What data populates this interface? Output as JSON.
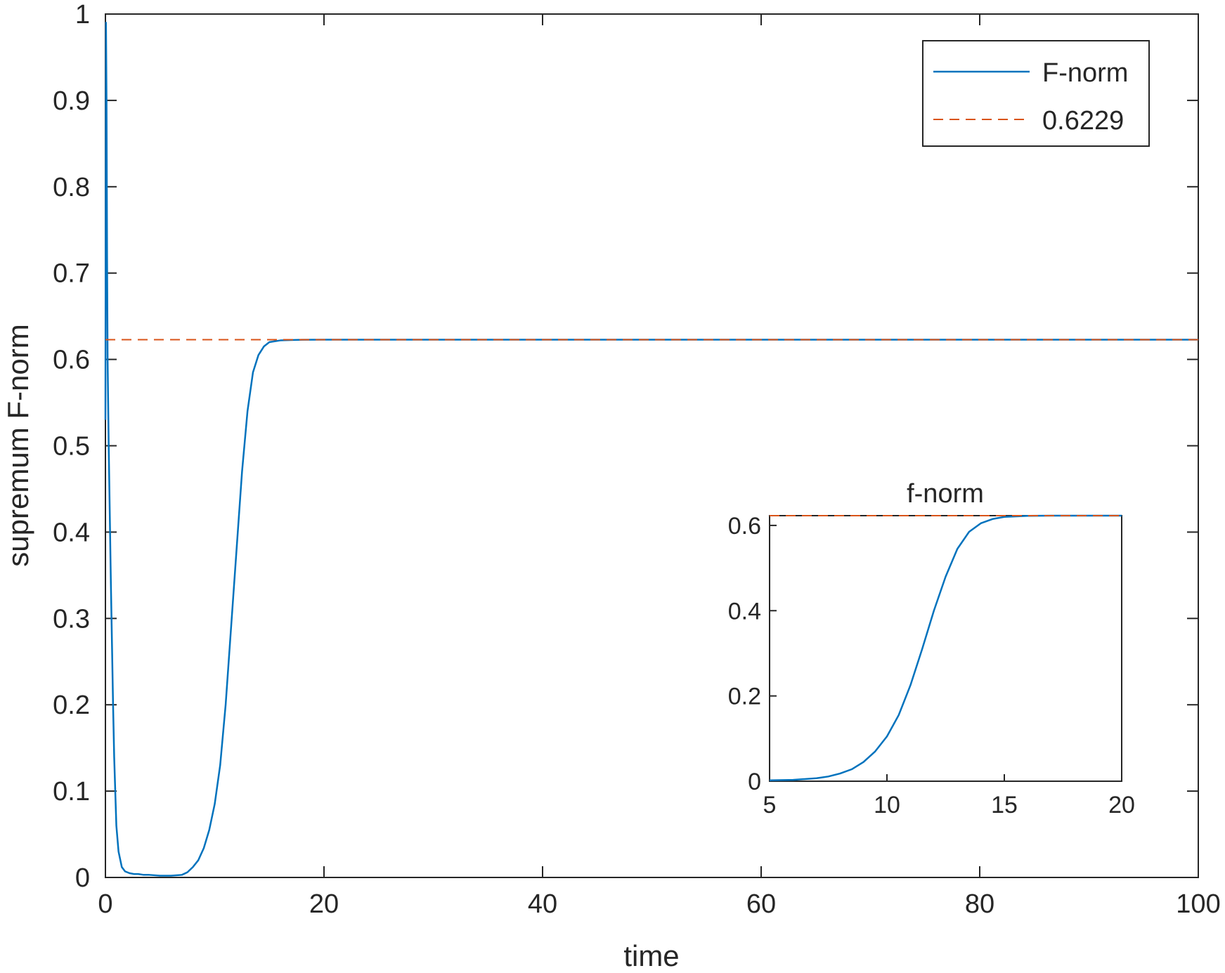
{
  "chart_data": [
    {
      "type": "line",
      "title": "",
      "xlabel": "time",
      "ylabel": "supremum F-norm",
      "xlim": [
        0,
        100
      ],
      "ylim": [
        0,
        1
      ],
      "xticks": [
        0,
        20,
        40,
        60,
        80,
        100
      ],
      "yticks": [
        0,
        0.1,
        0.2,
        0.3,
        0.4,
        0.5,
        0.6,
        0.7,
        0.8,
        0.9,
        1
      ],
      "xtick_labels": [
        "0",
        "20",
        "40",
        "60",
        "80",
        "100"
      ],
      "ytick_labels": [
        "0",
        "0.1",
        "0.2",
        "0.3",
        "0.4",
        "0.5",
        "0.6",
        "0.7",
        "0.8",
        "0.9",
        "1"
      ],
      "grid": false,
      "legend_position": "top-right",
      "series": [
        {
          "name": "F-norm",
          "color": "#0072BD",
          "style": "solid",
          "x": [
            0,
            0.05,
            0.1,
            0.15,
            0.2,
            0.3,
            0.4,
            0.5,
            0.6,
            0.7,
            0.8,
            1.0,
            1.2,
            1.5,
            1.8,
            2.2,
            2.6,
            3.0,
            3.5,
            4.0,
            5.0,
            6.0,
            7.0,
            7.5,
            8.0,
            8.5,
            9.0,
            9.5,
            10.0,
            10.5,
            11.0,
            11.5,
            12.0,
            12.5,
            13.0,
            13.5,
            14.0,
            14.5,
            15.0,
            15.5,
            16.0,
            17.0,
            18.0,
            20.0,
            30.0,
            50.0,
            70.0,
            100.0
          ],
          "y": [
            0.53,
            0.99,
            0.9,
            0.72,
            0.6,
            0.5,
            0.42,
            0.34,
            0.27,
            0.2,
            0.14,
            0.06,
            0.03,
            0.012,
            0.007,
            0.005,
            0.004,
            0.004,
            0.003,
            0.003,
            0.002,
            0.002,
            0.003,
            0.006,
            0.012,
            0.02,
            0.034,
            0.055,
            0.085,
            0.13,
            0.2,
            0.29,
            0.38,
            0.47,
            0.54,
            0.585,
            0.605,
            0.615,
            0.62,
            0.621,
            0.622,
            0.6225,
            0.6228,
            0.6229,
            0.6229,
            0.6229,
            0.6229,
            0.6229
          ]
        },
        {
          "name": "0.6229",
          "color": "#D95319",
          "style": "dashed",
          "x": [
            0,
            100
          ],
          "y": [
            0.6229,
            0.6229
          ]
        }
      ]
    },
    {
      "type": "line",
      "title": "f-norm",
      "xlabel": "",
      "ylabel": "",
      "xlim": [
        5,
        20
      ],
      "ylim": [
        0,
        0.6229
      ],
      "xticks": [
        5,
        10,
        15,
        20
      ],
      "yticks": [
        0,
        0.2,
        0.4,
        0.6
      ],
      "xtick_labels": [
        "5",
        "10",
        "15",
        "20"
      ],
      "ytick_labels": [
        "0",
        "0.2",
        "0.4",
        "0.6"
      ],
      "grid": false,
      "series": [
        {
          "color": "#0072BD",
          "style": "solid",
          "x": [
            5,
            6,
            7,
            7.5,
            8,
            8.5,
            9,
            9.5,
            10,
            10.5,
            11,
            11.5,
            12,
            12.5,
            13,
            13.5,
            14,
            14.5,
            15,
            16,
            17,
            18,
            19,
            20
          ],
          "y": [
            0.002,
            0.003,
            0.007,
            0.011,
            0.018,
            0.028,
            0.045,
            0.07,
            0.105,
            0.155,
            0.225,
            0.31,
            0.4,
            0.48,
            0.545,
            0.585,
            0.605,
            0.615,
            0.62,
            0.6225,
            0.6228,
            0.6229,
            0.6229,
            0.6229
          ]
        },
        {
          "color": "#D95319",
          "style": "dashed",
          "x": [
            5,
            20
          ],
          "y": [
            0.6229,
            0.6229
          ]
        }
      ]
    }
  ]
}
